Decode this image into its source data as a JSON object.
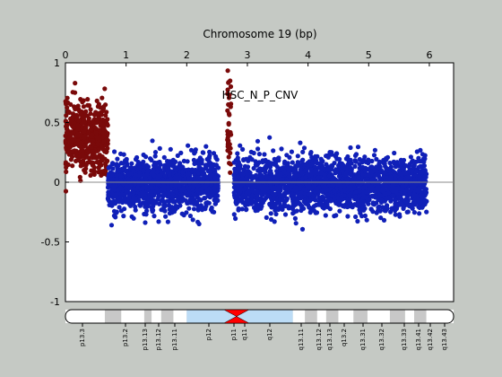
{
  "chart_data": {
    "type": "scatter",
    "title": "Chromosome 19 (bp)",
    "annotation": "HSC_N_P_CNV",
    "x_ticks": [
      "0",
      "1",
      "2",
      "3",
      "4",
      "5",
      "6"
    ],
    "y_ticks": [
      "1",
      "0.5",
      "0",
      "-0.5",
      "-1"
    ],
    "xlim": [
      0,
      6.4
    ],
    "ylim": [
      -1,
      1
    ],
    "x_tick_values": [
      0,
      1,
      2,
      3,
      4,
      5,
      6
    ],
    "y_tick_values": [
      1,
      0.5,
      0,
      -0.5,
      -1
    ],
    "grid": false,
    "baseline": 0,
    "colors": {
      "background": "#c5c9c4",
      "plot_bg": "#ffffff",
      "red_series": "#7a0a0a",
      "blue_series": "#1020b8",
      "centromere": "#ff0000",
      "band_dark": "#c8c8c8",
      "band_light": "#ffffff",
      "band_blue": "#bcdcf6"
    },
    "series": [
      {
        "color_key": "red_series",
        "segments": [
          {
            "x_range": [
              0.0,
              0.7
            ],
            "mean": 0.38,
            "sd": 0.14,
            "min": -0.1,
            "max": 0.95
          },
          {
            "x_range": [
              2.67,
              2.73
            ],
            "mean": 0.45,
            "sd": 0.25,
            "min": 0.05,
            "max": 0.95
          }
        ]
      },
      {
        "color_key": "blue_series",
        "segments": [
          {
            "x_range": [
              0.7,
              2.52
            ],
            "mean": -0.02,
            "sd": 0.11,
            "min": -0.38,
            "max": 0.45
          },
          {
            "x_range": [
              2.78,
              5.96
            ],
            "mean": -0.02,
            "sd": 0.11,
            "min": -0.42,
            "max": 0.45
          }
        ]
      }
    ],
    "ideogram_bands": [
      "p13.3",
      "p13.2",
      "p13.13",
      "p13.12",
      "p13.11",
      "p12",
      "p11",
      "q11",
      "q12",
      "q13.11",
      "q13.12",
      "q13.13",
      "q13.2",
      "q13.31",
      "q13.32",
      "q13.33",
      "q13.41",
      "q13.42",
      "q13.43"
    ],
    "ideogram_segments": [
      {
        "x": [
          0.0,
          0.65
        ],
        "shade": "band_light"
      },
      {
        "x": [
          0.65,
          0.92
        ],
        "shade": "band_dark"
      },
      {
        "x": [
          0.92,
          1.3
        ],
        "shade": "band_light"
      },
      {
        "x": [
          1.3,
          1.42
        ],
        "shade": "band_dark"
      },
      {
        "x": [
          1.42,
          1.58
        ],
        "shade": "band_light"
      },
      {
        "x": [
          1.58,
          1.78
        ],
        "shade": "band_dark"
      },
      {
        "x": [
          1.78,
          2.0
        ],
        "shade": "band_light"
      },
      {
        "x": [
          2.0,
          2.7
        ],
        "shade": "band_blue"
      },
      {
        "x": [
          2.7,
          3.75
        ],
        "shade": "band_blue"
      },
      {
        "x": [
          3.75,
          3.95
        ],
        "shade": "band_light"
      },
      {
        "x": [
          3.95,
          4.15
        ],
        "shade": "band_dark"
      },
      {
        "x": [
          4.15,
          4.3
        ],
        "shade": "band_light"
      },
      {
        "x": [
          4.3,
          4.5
        ],
        "shade": "band_dark"
      },
      {
        "x": [
          4.5,
          4.75
        ],
        "shade": "band_light"
      },
      {
        "x": [
          4.75,
          4.98
        ],
        "shade": "band_dark"
      },
      {
        "x": [
          4.98,
          5.35
        ],
        "shade": "band_light"
      },
      {
        "x": [
          5.35,
          5.6
        ],
        "shade": "band_dark"
      },
      {
        "x": [
          5.6,
          5.75
        ],
        "shade": "band_light"
      },
      {
        "x": [
          5.75,
          5.95
        ],
        "shade": "band_dark"
      },
      {
        "x": [
          5.95,
          6.4
        ],
        "shade": "band_light"
      }
    ],
    "centromere_x": 2.82
  }
}
